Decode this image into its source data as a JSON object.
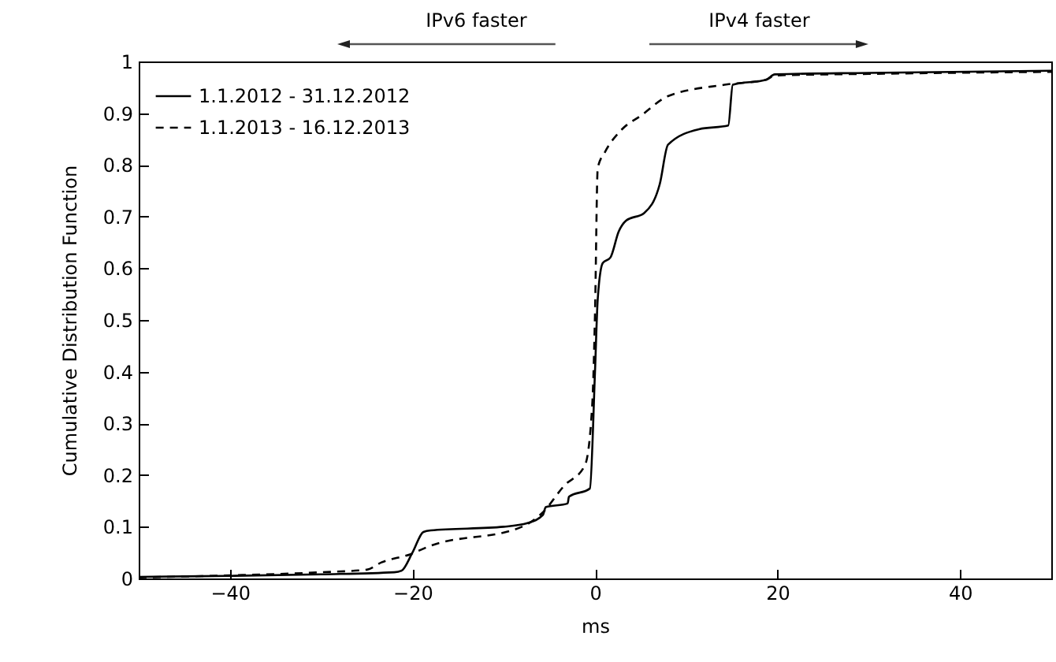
{
  "chart_data": {
    "type": "line",
    "xlabel": "ms",
    "ylabel": "Cumulative Distribution Function",
    "annotations": [
      "IPv6 faster",
      "IPv4 faster"
    ],
    "xlim": [
      -50,
      50
    ],
    "xticks": [
      -40,
      -20,
      0,
      20,
      40
    ],
    "ylim": [
      0,
      1
    ],
    "yticks": [
      0,
      0.1,
      0.2,
      0.3,
      0.4,
      0.5,
      0.6,
      0.7,
      0.8,
      0.9,
      1
    ],
    "grid": false,
    "legend": "top left",
    "marker": "none",
    "series": [
      {
        "name": "1.1.2012 - 31.12.2012",
        "color": "#000000",
        "line_style": "solid",
        "x": [
          -50,
          -40,
          -30,
          -22,
          -21.2,
          -20,
          -18.8,
          -18,
          -10,
          -7.4,
          -5.7,
          -5.4,
          -3,
          -2.85,
          -0.56,
          0,
          0.3,
          0.85,
          1.7,
          2.6,
          3.4,
          5.4,
          7.1,
          8,
          11.4,
          14.6,
          15.1,
          18.8,
          19.7,
          30,
          50
        ],
        "values": [
          0.003,
          0.005,
          0.008,
          0.012,
          0.015,
          0.05,
          0.09,
          0.093,
          0.1,
          0.107,
          0.123,
          0.138,
          0.145,
          0.158,
          0.174,
          0.4,
          0.54,
          0.61,
          0.621,
          0.671,
          0.692,
          0.707,
          0.763,
          0.839,
          0.869,
          0.876,
          0.955,
          0.965,
          0.975,
          0.978,
          0.982
        ]
      },
      {
        "name": "1.1.2013 - 16.12.2013",
        "color": "#000000",
        "line_style": "dashed",
        "x": [
          -50,
          -40,
          -30,
          -25,
          -23.4,
          -20.2,
          -18.2,
          -8,
          -5.7,
          -3.4,
          -1.1,
          -0.3,
          0,
          0.3,
          1.1,
          2.8,
          5.1,
          8,
          14.2,
          18.8,
          19.7,
          30,
          50
        ],
        "values": [
          0.002,
          0.006,
          0.012,
          0.017,
          0.031,
          0.047,
          0.062,
          0.1,
          0.128,
          0.179,
          0.219,
          0.336,
          0.51,
          0.794,
          0.825,
          0.866,
          0.896,
          0.933,
          0.955,
          0.965,
          0.973,
          0.976,
          0.98
        ]
      }
    ]
  }
}
